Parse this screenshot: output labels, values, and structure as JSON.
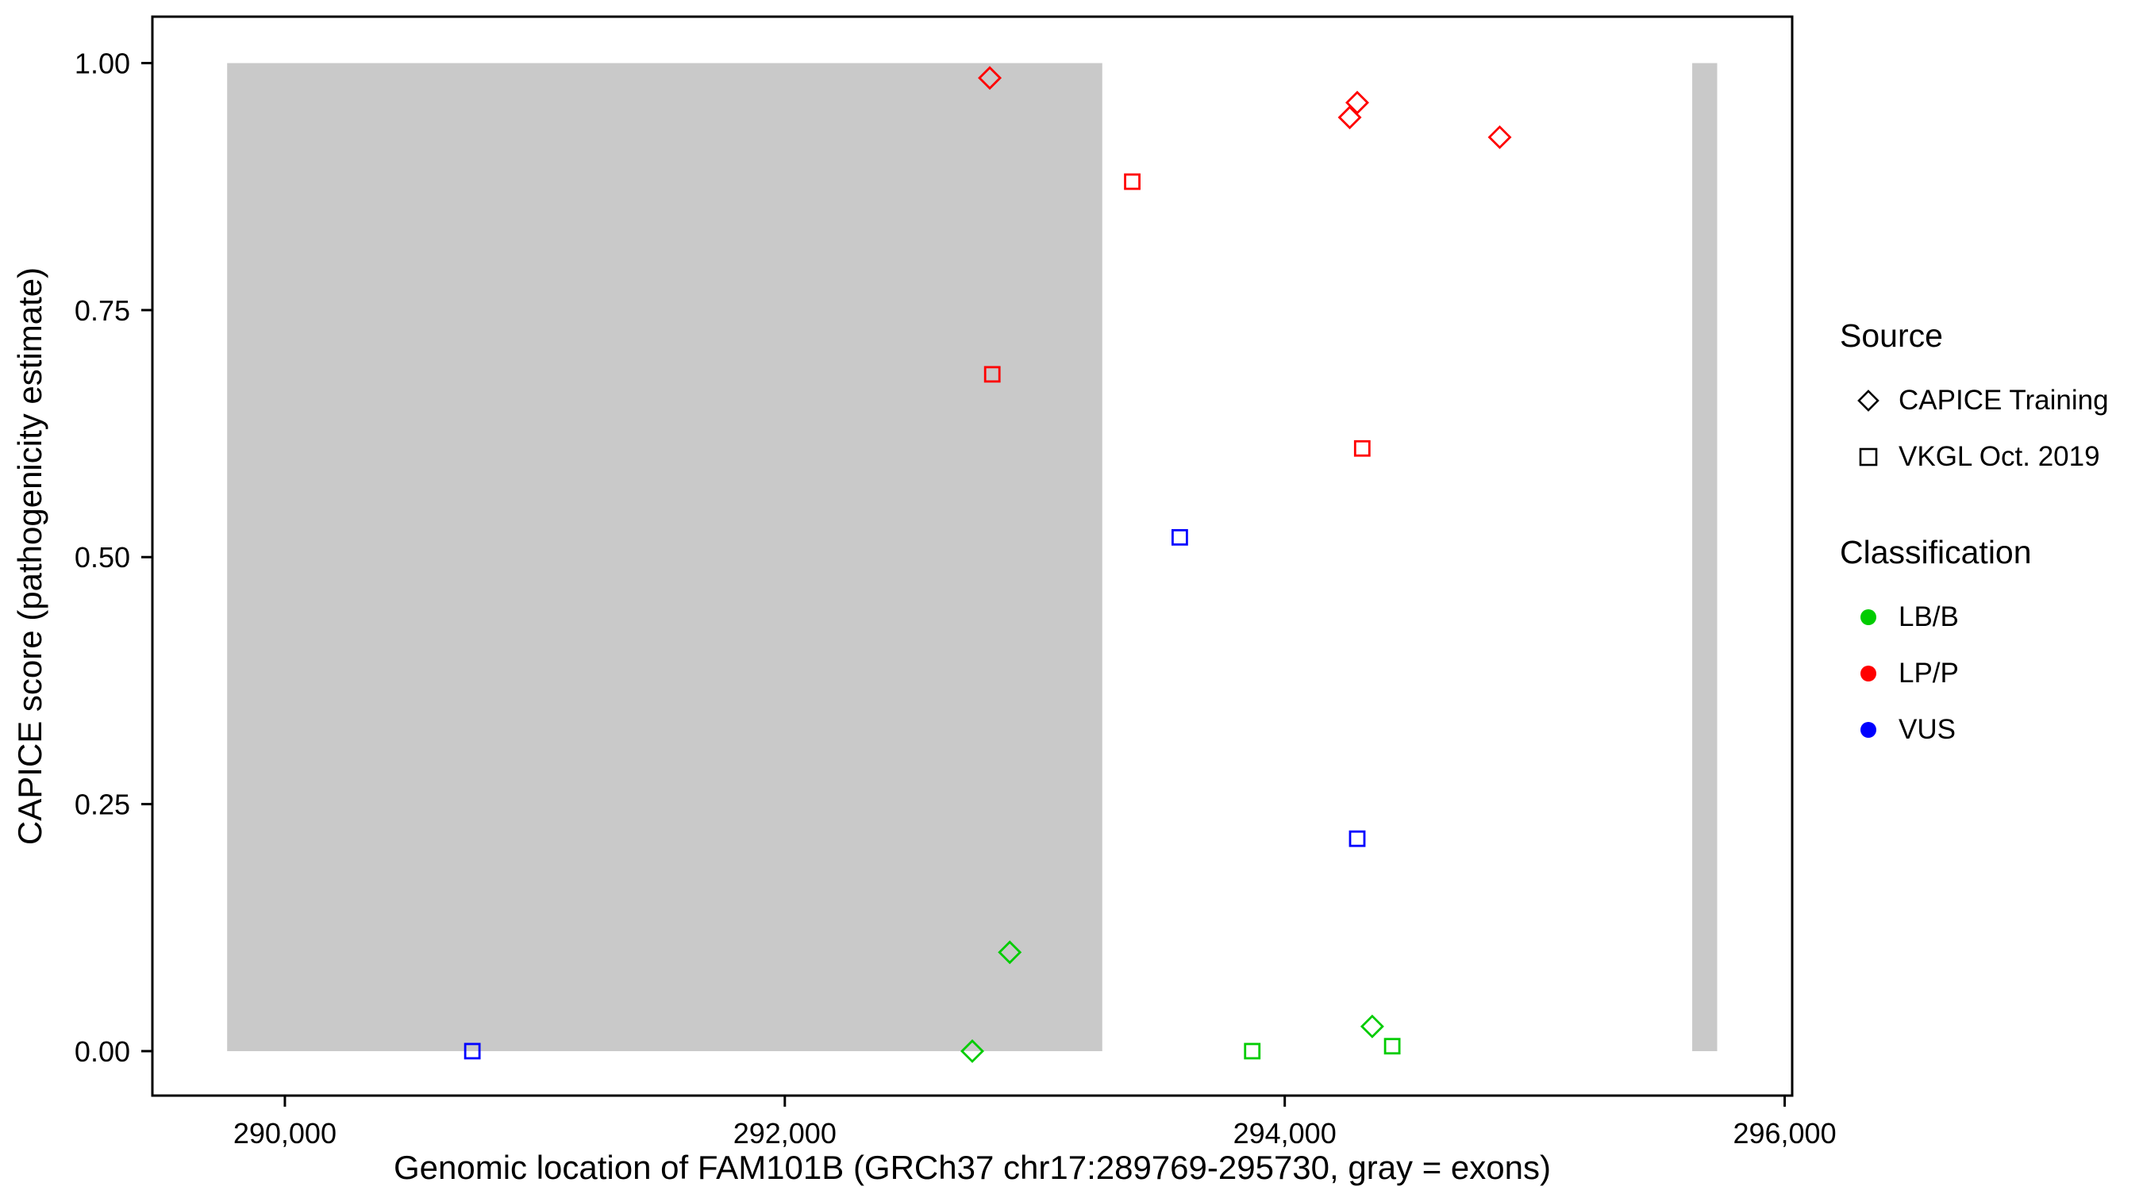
{
  "legend": {
    "source": {
      "title": "Source",
      "entries": [
        {
          "label": "CAPICE Training",
          "marker": "diamond"
        },
        {
          "label": "VKGL Oct. 2019",
          "marker": "square"
        }
      ]
    },
    "classification": {
      "title": "Classification",
      "entries": [
        {
          "label": "LB/B",
          "color": "#00cc00"
        },
        {
          "label": "LP/P",
          "color": "#ff0000"
        },
        {
          "label": "VUS",
          "color": "#0000ff"
        }
      ]
    }
  },
  "chart_data": {
    "type": "scatter",
    "title": "",
    "xlabel": "Genomic location of FAM101B (GRCh37 chr17:289769-295730, gray = exons)",
    "ylabel": "CAPICE score (pathogenicity estimate)",
    "xlim": [
      289470,
      296030
    ],
    "ylim": [
      -0.045,
      1.047
    ],
    "grid": false,
    "legend_position": "right",
    "x_ticks": [
      {
        "value": 290000,
        "label": "290,000"
      },
      {
        "value": 292000,
        "label": "292,000"
      },
      {
        "value": 294000,
        "label": "294,000"
      },
      {
        "value": 296000,
        "label": "296,000"
      }
    ],
    "y_ticks": [
      {
        "value": 0.0,
        "label": "0.00"
      },
      {
        "value": 0.25,
        "label": "0.25"
      },
      {
        "value": 0.5,
        "label": "0.50"
      },
      {
        "value": 0.75,
        "label": "0.75"
      },
      {
        "value": 1.0,
        "label": "1.00"
      }
    ],
    "exon_color": "#c9c9c9",
    "exon_regions": [
      {
        "start": 289769,
        "end": 293270,
        "y0": 0.0,
        "y1": 1.0
      },
      {
        "start": 295630,
        "end": 295730,
        "y0": 0.0,
        "y1": 1.0
      }
    ],
    "colors": {
      "LB/B": "#00cc00",
      "LP/P": "#ff0000",
      "VUS": "#0000ff"
    },
    "marker_by_source": {
      "CAPICE Training": "diamond",
      "VKGL Oct. 2019": "square"
    },
    "points": [
      {
        "x": 292820,
        "y": 0.985,
        "source": "CAPICE Training",
        "classification": "LP/P"
      },
      {
        "x": 294290,
        "y": 0.96,
        "source": "CAPICE Training",
        "classification": "LP/P"
      },
      {
        "x": 294260,
        "y": 0.945,
        "source": "CAPICE Training",
        "classification": "LP/P"
      },
      {
        "x": 294860,
        "y": 0.925,
        "source": "CAPICE Training",
        "classification": "LP/P"
      },
      {
        "x": 293390,
        "y": 0.88,
        "source": "VKGL Oct. 2019",
        "classification": "LP/P"
      },
      {
        "x": 292830,
        "y": 0.685,
        "source": "VKGL Oct. 2019",
        "classification": "LP/P"
      },
      {
        "x": 294310,
        "y": 0.61,
        "source": "VKGL Oct. 2019",
        "classification": "LP/P"
      },
      {
        "x": 293580,
        "y": 0.52,
        "source": "VKGL Oct. 2019",
        "classification": "VUS"
      },
      {
        "x": 294290,
        "y": 0.215,
        "source": "VKGL Oct. 2019",
        "classification": "VUS"
      },
      {
        "x": 292900,
        "y": 0.1,
        "source": "CAPICE Training",
        "classification": "LB/B"
      },
      {
        "x": 294350,
        "y": 0.025,
        "source": "CAPICE Training",
        "classification": "LB/B"
      },
      {
        "x": 292750,
        "y": 0.0,
        "source": "CAPICE Training",
        "classification": "LB/B"
      },
      {
        "x": 290750,
        "y": 0.0,
        "source": "VKGL Oct. 2019",
        "classification": "VUS"
      },
      {
        "x": 293870,
        "y": 0.0,
        "source": "VKGL Oct. 2019",
        "classification": "LB/B"
      },
      {
        "x": 294430,
        "y": 0.005,
        "source": "VKGL Oct. 2019",
        "classification": "LB/B"
      }
    ]
  }
}
